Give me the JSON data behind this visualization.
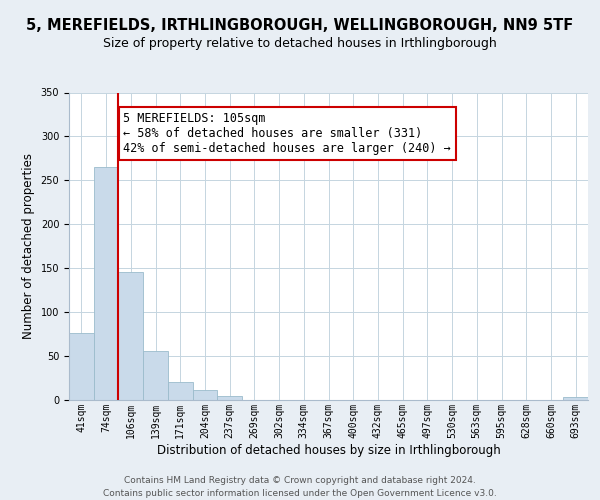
{
  "title": "5, MEREFIELDS, IRTHLINGBOROUGH, WELLINGBOROUGH, NN9 5TF",
  "subtitle": "Size of property relative to detached houses in Irthlingborough",
  "xlabel": "Distribution of detached houses by size in Irthlingborough",
  "ylabel": "Number of detached properties",
  "bar_values": [
    76,
    265,
    146,
    56,
    20,
    11,
    4,
    0,
    0,
    0,
    0,
    0,
    0,
    0,
    0,
    0,
    0,
    0,
    0,
    0,
    3
  ],
  "bar_labels": [
    "41sqm",
    "74sqm",
    "106sqm",
    "139sqm",
    "171sqm",
    "204sqm",
    "237sqm",
    "269sqm",
    "302sqm",
    "334sqm",
    "367sqm",
    "400sqm",
    "432sqm",
    "465sqm",
    "497sqm",
    "530sqm",
    "563sqm",
    "595sqm",
    "628sqm",
    "660sqm",
    "693sqm"
  ],
  "bar_color": "#c9daea",
  "bar_edge_color": "#9bbccc",
  "vline_color": "#cc0000",
  "annotation_text": "5 MEREFIELDS: 105sqm\n← 58% of detached houses are smaller (331)\n42% of semi-detached houses are larger (240) →",
  "annotation_box_color": "#ffffff",
  "annotation_box_edge": "#cc0000",
  "ylim": [
    0,
    350
  ],
  "yticks": [
    0,
    50,
    100,
    150,
    200,
    250,
    300,
    350
  ],
  "footer_text": "Contains HM Land Registry data © Crown copyright and database right 2024.\nContains public sector information licensed under the Open Government Licence v3.0.",
  "bg_color": "#e8eef4",
  "plot_bg_color": "#ffffff",
  "title_fontsize": 10.5,
  "subtitle_fontsize": 9,
  "axis_label_fontsize": 8.5,
  "tick_fontsize": 7,
  "annotation_fontsize": 8.5,
  "footer_fontsize": 6.5
}
